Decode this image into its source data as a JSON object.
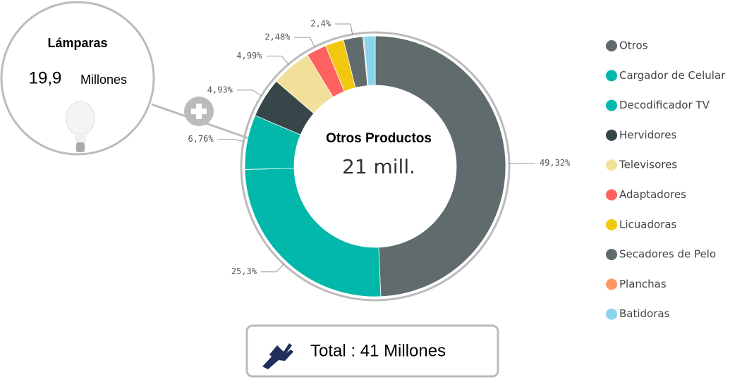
{
  "chart_data": {
    "type": "donut",
    "center_title": "Otros Productos",
    "center_value": "21 mill.",
    "categories": [
      "Otros",
      "Cargador de Celular",
      "Decodificador TV",
      "Hervidores",
      "Televisores",
      "Adaptadores",
      "Licuadoras",
      "Secadores de Pelo",
      "Planchas",
      "Batidoras"
    ],
    "values": [
      49.32,
      25.3,
      6.76,
      4.93,
      4.99,
      2.48,
      2.3,
      2.4,
      0.12,
      1.4
    ],
    "value_labels": [
      "49,32%",
      "25,3%",
      "6,76%",
      "4,93%",
      "4,99%",
      "2,48%",
      null,
      "2,4%",
      null,
      null
    ],
    "colors": [
      "#5f6b6d",
      "#01b8aa",
      "#01b8aa",
      "#374649",
      "#f2e09a",
      "#fd625e",
      "#f2c80f",
      "#5f6b6d",
      "#fe9666",
      "#8ad4eb"
    ],
    "legend": "right"
  },
  "callout": {
    "title": "Lámparas",
    "value": "19,9",
    "unit": "Millones"
  },
  "total": "Total : 41 Millones"
}
